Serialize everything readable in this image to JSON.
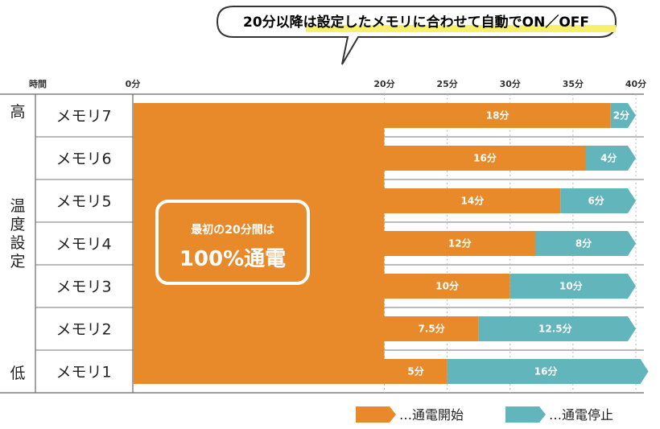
{
  "banner": "20分以降は設定したメモリに合わせて自動でON／OFF",
  "axis_title": "時間",
  "side_labels": {
    "high": "高",
    "mid": "温度設定",
    "low": "低"
  },
  "callout": {
    "line1": "最初の20分間は",
    "line2": "100%通電"
  },
  "legend": [
    {
      "label": "…通電開始",
      "color": "#e88a2a"
    },
    {
      "label": "…通電停止",
      "color": "#62b5bb"
    }
  ],
  "chart_data": {
    "type": "bar",
    "orientation": "horizontal",
    "stacked": true,
    "xlim": [
      0,
      40
    ],
    "xticks": [
      "0分",
      "20分",
      "25分",
      "30分",
      "35分",
      "40分"
    ],
    "xtick_values": [
      0,
      20,
      25,
      30,
      35,
      40
    ],
    "categories": [
      "メモリ7",
      "メモリ6",
      "メモリ5",
      "メモリ4",
      "メモリ3",
      "メモリ2",
      "メモリ1"
    ],
    "initial_on": 20,
    "series": [
      {
        "name": "通電開始",
        "color": "#e88a2a",
        "values": [
          18,
          16,
          14,
          12,
          10,
          7.5,
          5
        ],
        "labels": [
          "18分",
          "16分",
          "14分",
          "12分",
          "10分",
          "7.5分",
          "5分"
        ]
      },
      {
        "name": "通電停止",
        "color": "#62b5bb",
        "values": [
          2,
          4,
          6,
          8,
          10,
          12.5,
          16
        ],
        "labels": [
          "2分",
          "4分",
          "6分",
          "8分",
          "10分",
          "12.5分",
          "16分"
        ]
      }
    ]
  }
}
